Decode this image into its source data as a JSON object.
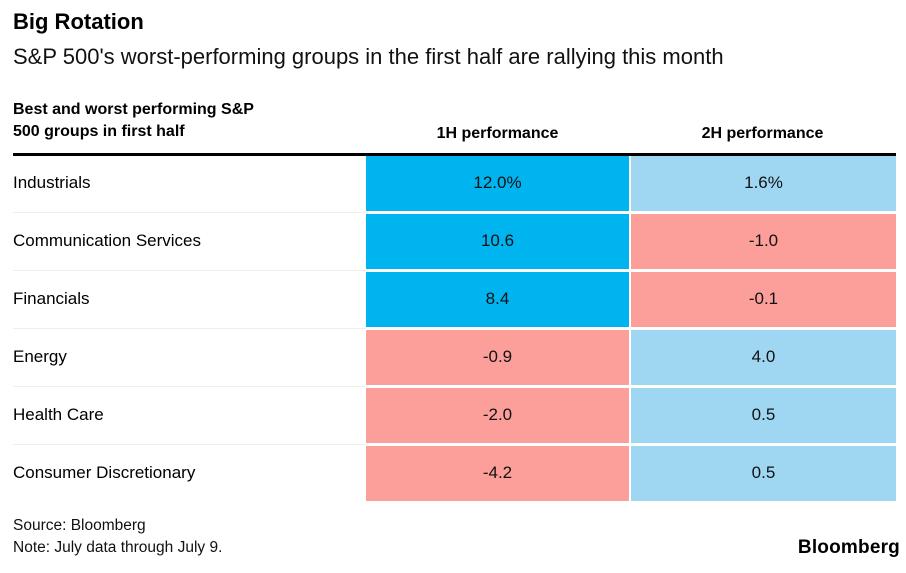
{
  "page": {
    "title": "Big Rotation",
    "subtitle": "S&P 500's worst-performing groups in the first half are rallying this month"
  },
  "table": {
    "label_header_line1": "Best and worst performing S&P",
    "label_header_line2": "500 groups in first half",
    "col1_header": "1H performance",
    "col2_header": "2H performance",
    "rows": [
      {
        "label": "Industrials",
        "h1": "12.0%",
        "h2": "1.6%",
        "h1_bg": "#00B4F0",
        "h2_bg": "#9FD7F3"
      },
      {
        "label": "Communication Services",
        "h1": "10.6",
        "h2": "-1.0",
        "h1_bg": "#00B4F0",
        "h2_bg": "#FC9F9B"
      },
      {
        "label": "Financials",
        "h1": "8.4",
        "h2": "-0.1",
        "h1_bg": "#00B4F0",
        "h2_bg": "#FC9F9B"
      },
      {
        "label": "Energy",
        "h1": "-0.9",
        "h2": "4.0",
        "h1_bg": "#FC9F9B",
        "h2_bg": "#9FD7F3"
      },
      {
        "label": "Health Care",
        "h1": "-2.0",
        "h2": "0.5",
        "h1_bg": "#FC9F9B",
        "h2_bg": "#9FD7F3"
      },
      {
        "label": "Consumer Discretionary",
        "h1": "-4.2",
        "h2": "0.5",
        "h1_bg": "#FC9F9B",
        "h2_bg": "#9FD7F3"
      }
    ]
  },
  "footer": {
    "source": "Source: Bloomberg",
    "note": "Note: July data through July 9.",
    "logo": "Bloomberg"
  },
  "colors": {
    "strong_positive_blue": "#00B4F0",
    "mild_positive_blue": "#9FD7F3",
    "negative_pink": "#FC9F9B",
    "rule_black": "#000000",
    "row_divider_gray": "#EFEFEF"
  },
  "chart_data": {
    "type": "table",
    "title": "Big Rotation",
    "subtitle": "S&P 500's worst-performing groups in the first half are rallying this month",
    "columns": [
      "Best and worst performing S&P 500 groups in first half",
      "1H performance",
      "2H performance"
    ],
    "categories": [
      "Industrials",
      "Communication Services",
      "Financials",
      "Energy",
      "Health Care",
      "Consumer Discretionary"
    ],
    "series": [
      {
        "name": "1H performance",
        "values": [
          12.0,
          10.6,
          8.4,
          -0.9,
          -2.0,
          -4.2
        ],
        "unit": "%"
      },
      {
        "name": "2H performance",
        "values": [
          1.6,
          -1.0,
          -0.1,
          4.0,
          0.5,
          0.5
        ],
        "unit": "%"
      }
    ],
    "cell_color_rule": "1H positive = strong blue #00B4F0; 2H positive = light blue #9FD7F3; negative = pink #FC9F9B",
    "source": "Source: Bloomberg",
    "note": "Note: July data through July 9."
  }
}
